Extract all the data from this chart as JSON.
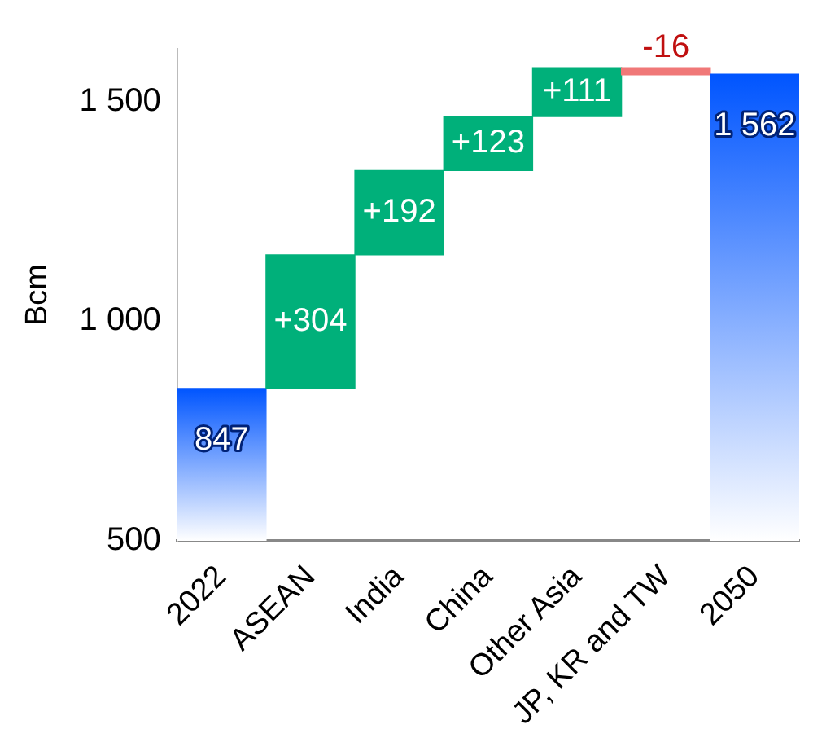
{
  "chart_data": {
    "type": "bar",
    "ylabel": "Bcm",
    "categories": [
      "2022",
      "ASEAN",
      "India",
      "China",
      "Other Asia",
      "JP, KR and TW",
      "2050"
    ],
    "values": [
      847,
      304,
      192,
      123,
      111,
      -16,
      1562
    ],
    "base": [
      null,
      847,
      1151,
      1343,
      1466,
      1577,
      null
    ],
    "colors": [
      "#0055ff",
      "#00b07a",
      "#00b07a",
      "#00b07a",
      "#00b07a",
      "#f07878",
      "#0055ff"
    ],
    "value_labels": [
      "847",
      "+304",
      "+192",
      "+123",
      "+111",
      "-16",
      "1 562"
    ],
    "ylim": [
      500,
      1620
    ],
    "yticks": [
      {
        "value": 500,
        "label": "500"
      },
      {
        "value": 1000,
        "label": "1 000"
      },
      {
        "value": 1500,
        "label": "1 500"
      }
    ],
    "grid": false,
    "legend": false
  }
}
